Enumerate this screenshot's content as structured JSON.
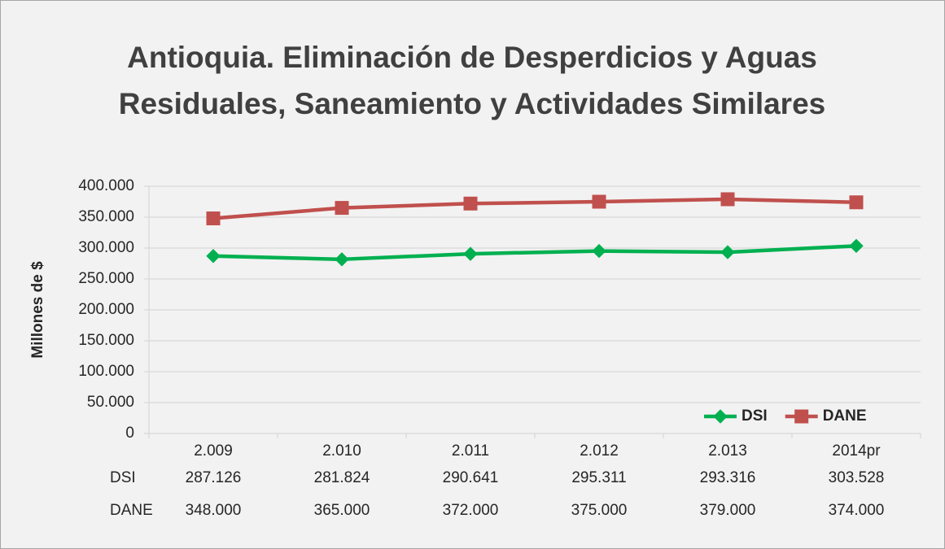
{
  "chart_data": {
    "type": "line",
    "title": "Antioquia. Eliminación de Desperdicios y Aguas Residuales, Saneamiento y Actividades Similares",
    "y_label": "Millones de $",
    "categories": [
      "2.009",
      "2.010",
      "2.011",
      "2.012",
      "2.013",
      "2014pr"
    ],
    "series": [
      {
        "name": "DSI",
        "color": "#00b050",
        "marker": "diamond",
        "values": [
          287126,
          281824,
          290641,
          295311,
          293316,
          303528
        ],
        "value_labels": [
          "287.126",
          "281.824",
          "290.641",
          "295.311",
          "293.316",
          "303.528"
        ]
      },
      {
        "name": "DANE",
        "color": "#c0504d",
        "marker": "square",
        "values": [
          348000,
          365000,
          372000,
          375000,
          379000,
          374000
        ],
        "value_labels": [
          "348.000",
          "365.000",
          "372.000",
          "375.000",
          "379.000",
          "374.000"
        ]
      }
    ],
    "ylim": [
      0,
      400000
    ],
    "yticks": [
      0,
      {
        "value": 50000,
        "label": "50.000"
      },
      {
        "value": 100000,
        "label": "100.000"
      },
      {
        "value": 150000,
        "label": "150.000"
      },
      {
        "value": 200000,
        "label": "200.000"
      },
      {
        "value": 250000,
        "label": "250.000"
      },
      {
        "value": 300000,
        "label": "300.000"
      },
      {
        "value": 350000,
        "label": "350.000"
      },
      {
        "value": 400000,
        "label": "400.000"
      }
    ],
    "grid": true,
    "legend": "bottom-right",
    "data_table": true
  }
}
